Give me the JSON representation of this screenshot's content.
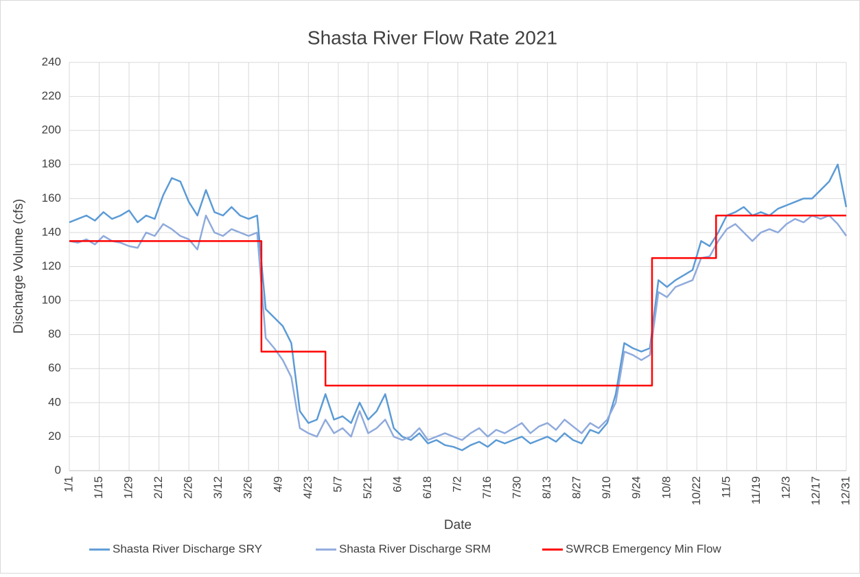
{
  "chart_data": {
    "type": "line",
    "title": "Shasta River Flow Rate 2021",
    "x_label": "Date",
    "y_label": "Discharge Volume (cfs)",
    "xlim": [
      1,
      365
    ],
    "ylim": [
      0,
      240
    ],
    "yticks": [
      0,
      20,
      40,
      60,
      80,
      100,
      120,
      140,
      160,
      180,
      200,
      220,
      240
    ],
    "xticks": [
      {
        "value": 1,
        "label": "1/1"
      },
      {
        "value": 15,
        "label": "1/15"
      },
      {
        "value": 29,
        "label": "1/29"
      },
      {
        "value": 43,
        "label": "2/12"
      },
      {
        "value": 57,
        "label": "2/26"
      },
      {
        "value": 71,
        "label": "3/12"
      },
      {
        "value": 85,
        "label": "3/26"
      },
      {
        "value": 99,
        "label": "4/9"
      },
      {
        "value": 113,
        "label": "4/23"
      },
      {
        "value": 127,
        "label": "5/7"
      },
      {
        "value": 141,
        "label": "5/21"
      },
      {
        "value": 155,
        "label": "6/4"
      },
      {
        "value": 169,
        "label": "6/18"
      },
      {
        "value": 183,
        "label": "7/2"
      },
      {
        "value": 197,
        "label": "7/16"
      },
      {
        "value": 211,
        "label": "7/30"
      },
      {
        "value": 225,
        "label": "8/13"
      },
      {
        "value": 239,
        "label": "8/27"
      },
      {
        "value": 253,
        "label": "9/10"
      },
      {
        "value": 267,
        "label": "9/24"
      },
      {
        "value": 281,
        "label": "10/8"
      },
      {
        "value": 295,
        "label": "10/22"
      },
      {
        "value": 309,
        "label": "11/5"
      },
      {
        "value": 323,
        "label": "11/19"
      },
      {
        "value": 337,
        "label": "12/3"
      },
      {
        "value": 351,
        "label": "12/17"
      },
      {
        "value": 365,
        "label": "12/31"
      }
    ],
    "grid": true,
    "legend": "bottom",
    "x": [
      1,
      5,
      9,
      13,
      17,
      21,
      25,
      29,
      33,
      37,
      41,
      45,
      49,
      53,
      57,
      61,
      65,
      69,
      73,
      77,
      81,
      85,
      89,
      93,
      97,
      101,
      105,
      109,
      113,
      117,
      121,
      125,
      129,
      133,
      137,
      141,
      145,
      149,
      153,
      157,
      161,
      165,
      169,
      173,
      177,
      181,
      185,
      189,
      193,
      197,
      201,
      205,
      209,
      213,
      217,
      221,
      225,
      229,
      233,
      237,
      241,
      245,
      249,
      253,
      257,
      261,
      265,
      269,
      273,
      277,
      281,
      285,
      289,
      293,
      297,
      301,
      305,
      309,
      313,
      317,
      321,
      325,
      329,
      333,
      337,
      341,
      345,
      349,
      353,
      357,
      361,
      365
    ],
    "series": [
      {
        "name": "Shasta River Discharge SRY",
        "color": "#5b9bd5",
        "values": [
          146,
          148,
          150,
          147,
          152,
          148,
          150,
          153,
          146,
          150,
          148,
          162,
          172,
          170,
          158,
          150,
          165,
          152,
          150,
          155,
          150,
          148,
          150,
          95,
          90,
          85,
          75,
          35,
          28,
          30,
          45,
          30,
          32,
          28,
          40,
          30,
          35,
          45,
          25,
          20,
          18,
          22,
          16,
          18,
          15,
          14,
          12,
          15,
          17,
          14,
          18,
          16,
          18,
          20,
          16,
          18,
          20,
          17,
          22,
          18,
          16,
          24,
          22,
          28,
          45,
          75,
          72,
          70,
          72,
          112,
          108,
          112,
          115,
          118,
          135,
          132,
          140,
          150,
          152,
          155,
          150,
          152,
          150,
          154,
          156,
          158,
          160,
          160,
          165,
          170,
          180,
          155
        ]
      },
      {
        "name": "Shasta River Discharge SRM",
        "color": "#8faadc",
        "values": [
          135,
          134,
          136,
          133,
          138,
          135,
          134,
          132,
          131,
          140,
          138,
          145,
          142,
          138,
          136,
          130,
          150,
          140,
          138,
          142,
          140,
          138,
          140,
          78,
          72,
          65,
          55,
          25,
          22,
          20,
          30,
          22,
          25,
          20,
          35,
          22,
          25,
          30,
          20,
          18,
          20,
          25,
          18,
          20,
          22,
          20,
          18,
          22,
          25,
          20,
          24,
          22,
          25,
          28,
          22,
          26,
          28,
          24,
          30,
          26,
          22,
          28,
          25,
          30,
          40,
          70,
          68,
          65,
          68,
          105,
          102,
          108,
          110,
          112,
          125,
          126,
          135,
          142,
          145,
          140,
          135,
          140,
          142,
          140,
          145,
          148,
          146,
          150,
          148,
          150,
          145,
          138
        ]
      },
      {
        "name": "SWRCB Emergency Min Flow",
        "color": "#ff0000",
        "x": [
          1,
          91,
          91,
          121,
          121,
          274,
          274,
          304,
          304,
          365
        ],
        "values": [
          135,
          135,
          70,
          70,
          50,
          50,
          125,
          125,
          150,
          150
        ]
      }
    ]
  }
}
